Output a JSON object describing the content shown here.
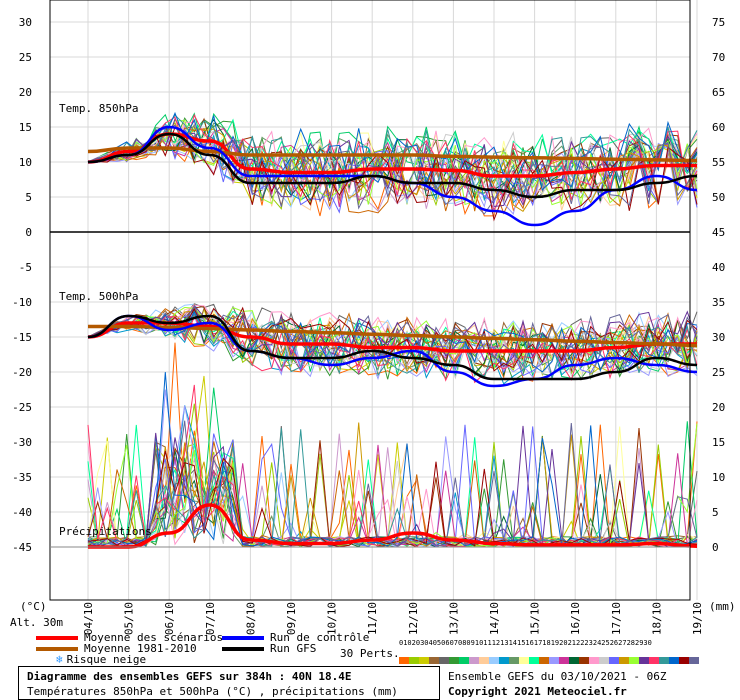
{
  "chart_data": {
    "type": "line",
    "title": "Diagramme des ensembles GEFS sur 384h : 40N 18.4E",
    "subtitle": "Températures 850hPa et 500hPa (°C) , précipitations (mm)",
    "x": [
      "04/10",
      "05/10",
      "06/10",
      "07/10",
      "08/10",
      "09/10",
      "10/10",
      "11/10",
      "12/10",
      "13/10",
      "14/10",
      "15/10",
      "16/10",
      "17/10",
      "18/10",
      "19/10"
    ],
    "left_axis": {
      "label": "(°C)",
      "ticks": [
        30,
        25,
        20,
        15,
        10,
        5,
        0,
        -5,
        -10,
        -15,
        -20,
        -25,
        -30,
        -35,
        -40,
        -45
      ],
      "ylim": [
        -45,
        30
      ]
    },
    "right_axis": {
      "label": "(mm)",
      "ticks": [
        75,
        70,
        65,
        60,
        55,
        50,
        45,
        40,
        35,
        30,
        25,
        20,
        15,
        10,
        5,
        0
      ]
    },
    "panels": [
      {
        "label": "Temp. 850hPa",
        "right_ticks": [
          75,
          70,
          65,
          60,
          55,
          50,
          45
        ]
      },
      {
        "label": "Temp. 500hPa",
        "right_ticks": [
          40,
          35,
          30,
          25,
          20,
          15,
          10,
          5,
          0
        ]
      },
      {
        "label": "Précipitations"
      }
    ],
    "series": [
      {
        "name": "Moyenne des scénarios",
        "color": "#ff0000",
        "panel": "850",
        "values": [
          10,
          11.5,
          14,
          13,
          9,
          8.5,
          8.5,
          9,
          9,
          8.8,
          8,
          8,
          8.5,
          9,
          9.5,
          9.5
        ]
      },
      {
        "name": "Moyenne 1981-2010",
        "color": "#b35900",
        "panel": "850",
        "values": [
          11.5,
          12,
          12,
          11.5,
          11,
          11,
          11,
          11,
          11,
          10.8,
          10.7,
          10.6,
          10.5,
          10.4,
          10.3,
          10.2
        ]
      },
      {
        "name": "Run de contrôle",
        "color": "#0000ff",
        "panel": "850",
        "values": [
          10,
          11,
          15,
          12,
          8,
          8,
          8,
          8,
          7,
          5,
          3,
          1,
          3,
          6,
          8,
          6
        ]
      },
      {
        "name": "Run GFS",
        "color": "#000000",
        "panel": "850",
        "values": [
          10,
          11,
          14,
          11,
          7,
          7,
          7,
          8,
          7,
          7,
          6,
          5,
          6,
          6,
          7,
          8
        ]
      },
      {
        "name": "Moyenne des scénarios",
        "color": "#ff0000",
        "panel": "500",
        "values": [
          -15,
          -13,
          -13,
          -13.5,
          -15,
          -16,
          -16,
          -16.5,
          -16.5,
          -17,
          -17,
          -17,
          -17,
          -16.5,
          -16,
          -16
        ]
      },
      {
        "name": "Moyenne 1981-2010",
        "color": "#b35900",
        "panel": "500",
        "values": [
          -13.5,
          -13.5,
          -13.6,
          -13.8,
          -14,
          -14.2,
          -14.4,
          -14.6,
          -14.8,
          -15,
          -15.2,
          -15.4,
          -15.6,
          -15.8,
          -16,
          -16.2
        ]
      },
      {
        "name": "Run de contrôle",
        "color": "#0000ff",
        "panel": "500",
        "values": [
          -15,
          -12,
          -14,
          -13,
          -17,
          -18,
          -19,
          -18,
          -17,
          -20,
          -22,
          -21,
          -19,
          -18,
          -19,
          -20
        ]
      },
      {
        "name": "Run GFS",
        "color": "#000000",
        "panel": "500",
        "values": [
          -15,
          -12,
          -13,
          -12,
          -17,
          -18,
          -18,
          -17,
          -18,
          -19,
          -21,
          -21,
          -21,
          -20,
          -18,
          -19
        ]
      },
      {
        "name": "Moyenne des scénarios",
        "color": "#ff0000",
        "panel": "precip",
        "values": [
          0,
          0,
          2,
          6,
          1,
          0.5,
          0.5,
          1,
          2,
          1,
          0.5,
          0.3,
          0.3,
          0.3,
          0.5,
          0.1
        ]
      }
    ],
    "members_count": 30,
    "members_label": "30 Perts.",
    "member_numbers": [
      "01",
      "02",
      "03",
      "04",
      "05",
      "06",
      "07",
      "08",
      "09",
      "10",
      "11",
      "12",
      "13",
      "14",
      "15",
      "16",
      "17",
      "18",
      "19",
      "20",
      "21",
      "22",
      "23",
      "24",
      "25",
      "26",
      "27",
      "28",
      "29",
      "30"
    ],
    "member_colors": [
      "#ff6600",
      "#99cc00",
      "#cccc00",
      "#996633",
      "#666666",
      "#339933",
      "#00cc66",
      "#cc99cc",
      "#ffcc99",
      "#99ccff",
      "#0099cc",
      "#669966",
      "#ffff99",
      "#00ff99",
      "#cc6600",
      "#9999ff",
      "#cc3399",
      "#006633",
      "#993300",
      "#ff99cc",
      "#cccccc",
      "#6666ff",
      "#cc9900",
      "#99ff33",
      "#663399",
      "#ff3366",
      "#339999",
      "#0066cc",
      "#990000",
      "#666699"
    ]
  },
  "legend": {
    "altitude": "Alt. 30m",
    "items": [
      {
        "label": "Moyenne des scénarios",
        "color": "#ff0000"
      },
      {
        "label": "Moyenne 1981-2010",
        "color": "#b35900"
      },
      {
        "label": "Risque neige",
        "icon": "snowflake-icon"
      },
      {
        "label": "Run de contrôle",
        "color": "#0000ff"
      },
      {
        "label": "Run GFS",
        "color": "#000000"
      }
    ]
  },
  "footer": {
    "title": "Diagramme des ensembles GEFS sur 384h : 40N 18.4E",
    "subtitle": "Températures 850hPa et 500hPa (°C) , précipitations (mm)",
    "ensemble_info": "Ensemble GEFS du 03/10/2021 - 06Z",
    "copyright": "Copyright 2021 Meteociel.fr"
  }
}
